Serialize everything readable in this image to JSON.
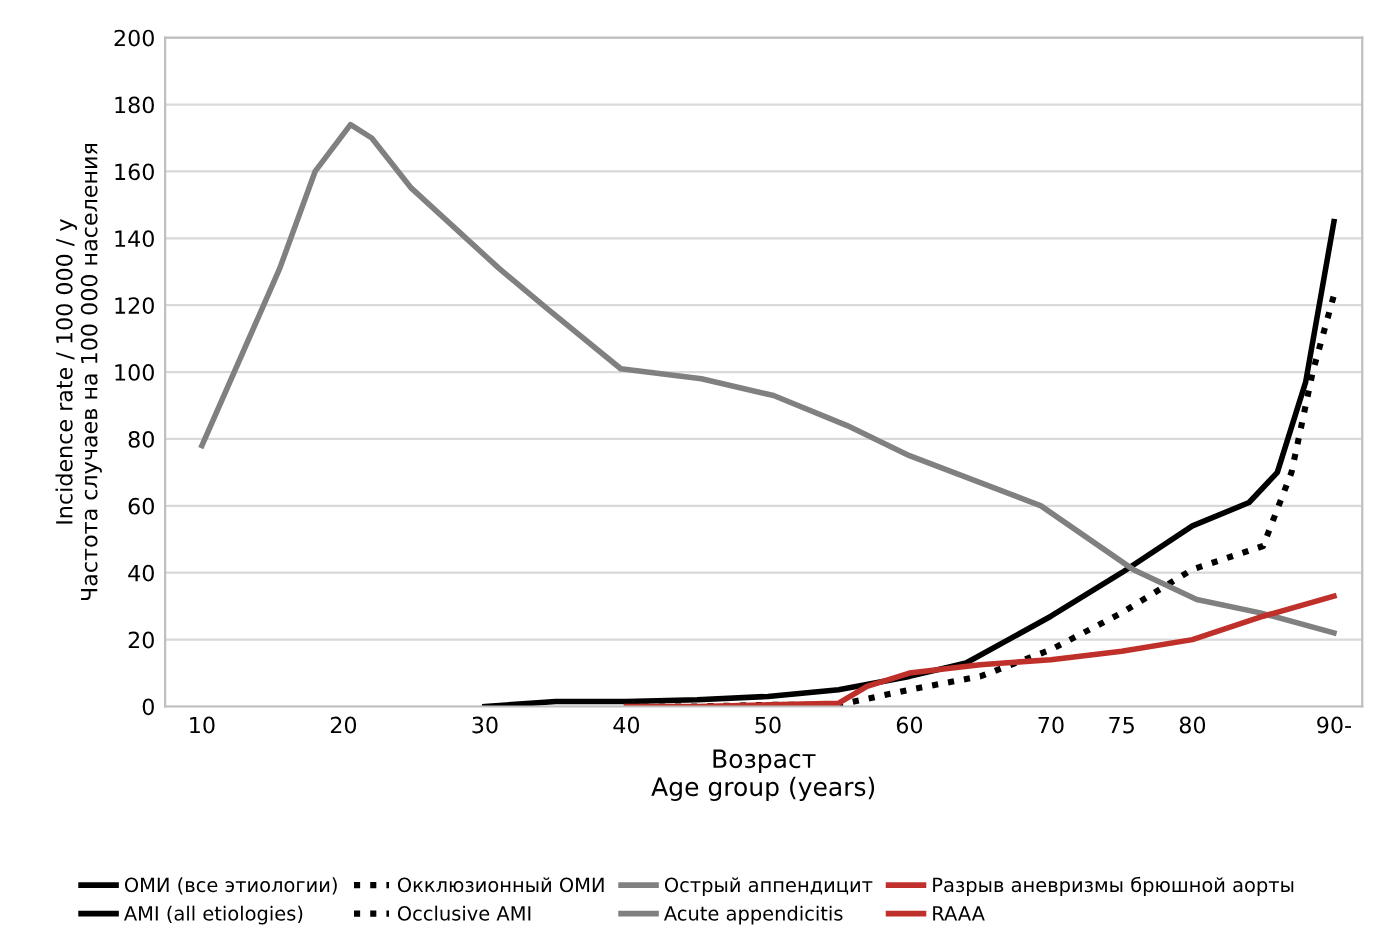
{
  "chart_data": {
    "type": "line",
    "xlabel": "Возраст\nAge group (years)",
    "ylabel": "Incidence rate / 100 000 / y\nЧастота случаев на 100 000 населения",
    "xlim": [
      7.4,
      92
    ],
    "xticks": [
      10,
      20,
      30,
      40,
      50,
      60,
      70,
      75,
      80,
      {
        "value": 90,
        "label": "90-"
      }
    ],
    "ylim": [
      0,
      200
    ],
    "yticks": [
      0,
      20,
      40,
      60,
      80,
      100,
      120,
      140,
      160,
      180,
      200
    ],
    "grid": "y",
    "legend": "bottom",
    "marker": "none",
    "annotations": [
      "ОМИ (все этиологии)",
      "Окклюзионный ОМИ",
      "Острый аппендицит",
      "Разрыв аневризмы брюшной аорты"
    ],
    "series": [
      {
        "name": "AMI (all etiologies)",
        "color": "#000000",
        "line_style": "solid",
        "x": [
          30,
          35,
          40,
          45,
          50,
          55,
          60,
          64,
          70,
          75,
          80,
          84,
          86,
          88,
          90
        ],
        "values": [
          0,
          1.5,
          1.5,
          2,
          3,
          5,
          9,
          13,
          27,
          40,
          54,
          61,
          70,
          97,
          145
        ]
      },
      {
        "name": "Occlusive AMI",
        "color": "#000000",
        "line_style": "dotted",
        "x": [
          40,
          45,
          50,
          55,
          60,
          65,
          70,
          75,
          80,
          85,
          87,
          88.5,
          90
        ],
        "values": [
          0,
          0,
          0.5,
          0.5,
          5,
          9,
          17,
          28,
          41,
          48,
          70,
          100,
          123
        ]
      },
      {
        "name": "Acute appendicitis",
        "color": "#808080",
        "line_style": "solid",
        "x": [
          10,
          15.5,
          18,
          20.5,
          22,
          24.8,
          31,
          34.4,
          39.6,
          45.3,
          50.4,
          55.6,
          60,
          69.3,
          75.8,
          80.3,
          84.8,
          90
        ],
        "values": [
          78,
          131,
          160,
          174,
          170,
          155,
          131,
          119,
          101,
          98,
          93,
          84,
          75,
          60,
          41,
          32,
          28,
          22
        ]
      },
      {
        "name": "RAAA",
        "color": "#c0302b",
        "line_style": "solid",
        "x": [
          40,
          45,
          50,
          55,
          57,
          60,
          65,
          70,
          75,
          80,
          85,
          90
        ],
        "values": [
          0,
          0,
          0.5,
          1,
          6,
          10,
          12.5,
          14,
          16.5,
          20,
          27,
          33
        ]
      }
    ]
  }
}
